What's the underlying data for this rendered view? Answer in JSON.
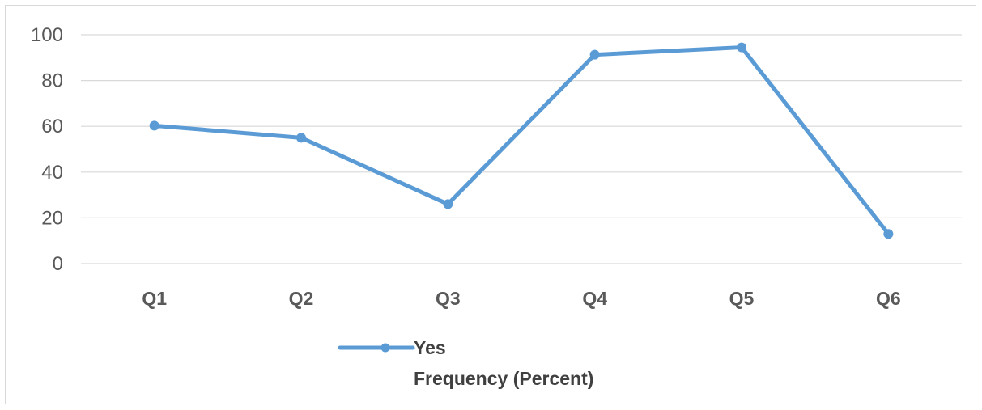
{
  "chart_data": {
    "type": "line",
    "categories": [
      "Q1",
      "Q2",
      "Q3",
      "Q4",
      "Q5",
      "Q6"
    ],
    "series": [
      {
        "name": "Yes",
        "values": [
          60.3,
          55,
          26,
          91.3,
          94.5,
          13
        ]
      }
    ],
    "legend_label": "Yes",
    "xlabel": "Frequency (Percent)",
    "ylabel": "",
    "title": "",
    "ylim": [
      0,
      100
    ],
    "yticks": [
      0,
      20,
      40,
      60,
      80,
      100
    ],
    "grid": true,
    "legend_position": "bottom",
    "colors": {
      "series": "#5b9bd5",
      "grid": "#d9d9d9",
      "axis": "#d9d9d9",
      "text": "#595959"
    }
  }
}
